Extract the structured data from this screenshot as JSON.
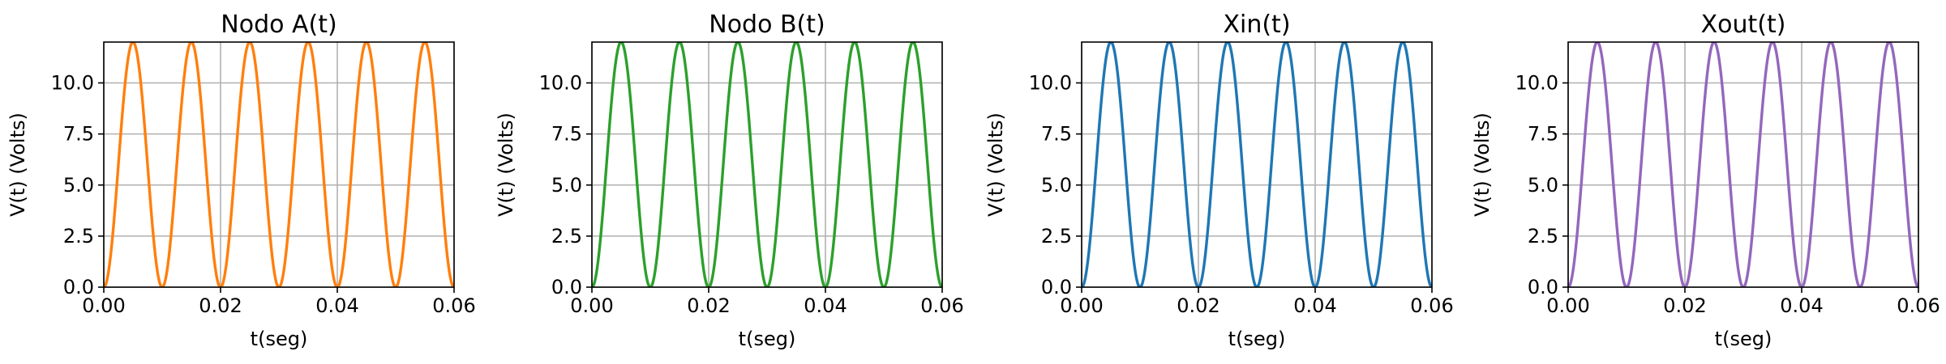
{
  "chart_data": [
    {
      "type": "line",
      "title": "Nodo A(t)",
      "xlabel": "t(seg)",
      "ylabel": "V(t) (Volts)",
      "xlim": [
        0.0,
        0.06
      ],
      "ylim": [
        0.0,
        12.0
      ],
      "xticks": [
        "0.00",
        "0.02",
        "0.04",
        "0.06"
      ],
      "yticks": [
        "0.0",
        "2.5",
        "5.0",
        "7.5",
        "10.0"
      ],
      "grid": true,
      "series": [
        {
          "color": "#ff7f0e",
          "x": [
            0.0,
            0.00125,
            0.0025,
            0.00375,
            0.005,
            0.00625,
            0.0075,
            0.00875,
            0.01,
            0.01125,
            0.0125,
            0.01375,
            0.015,
            0.01625,
            0.0175,
            0.01875,
            0.02,
            0.02125,
            0.0225,
            0.02375,
            0.025,
            0.02625,
            0.0275,
            0.02875,
            0.03,
            0.03125,
            0.0325,
            0.03375,
            0.035,
            0.03625,
            0.0375,
            0.03875,
            0.04,
            0.04125,
            0.0425,
            0.04375,
            0.045,
            0.04625,
            0.0475,
            0.04875,
            0.05,
            0.05125,
            0.0525,
            0.05375,
            0.055,
            0.05625,
            0.0575,
            0.05875,
            0.06
          ],
          "y": [
            0.0,
            1.76,
            6.0,
            10.24,
            12.0,
            10.24,
            6.0,
            1.76,
            0.0,
            1.76,
            6.0,
            10.24,
            12.0,
            10.24,
            6.0,
            1.76,
            0.0,
            1.76,
            6.0,
            10.24,
            12.0,
            10.24,
            6.0,
            1.76,
            0.0,
            1.76,
            6.0,
            10.24,
            12.0,
            10.24,
            6.0,
            1.76,
            0.0,
            1.76,
            6.0,
            10.24,
            12.0,
            10.24,
            6.0,
            1.76,
            0.0,
            1.76,
            6.0,
            10.24,
            12.0,
            10.24,
            6.0,
            1.76,
            0.0
          ]
        }
      ]
    },
    {
      "type": "line",
      "title": "Nodo B(t)",
      "xlabel": "t(seg)",
      "ylabel": "V(t) (Volts)",
      "xlim": [
        0.0,
        0.06
      ],
      "ylim": [
        0.0,
        12.0
      ],
      "xticks": [
        "0.00",
        "0.02",
        "0.04",
        "0.06"
      ],
      "yticks": [
        "0.0",
        "2.5",
        "5.0",
        "7.5",
        "10.0"
      ],
      "grid": true,
      "series": [
        {
          "color": "#2ca02c",
          "x": [
            0.0,
            0.00125,
            0.0025,
            0.00375,
            0.005,
            0.00625,
            0.0075,
            0.00875,
            0.01,
            0.01125,
            0.0125,
            0.01375,
            0.015,
            0.01625,
            0.0175,
            0.01875,
            0.02,
            0.02125,
            0.0225,
            0.02375,
            0.025,
            0.02625,
            0.0275,
            0.02875,
            0.03,
            0.03125,
            0.0325,
            0.03375,
            0.035,
            0.03625,
            0.0375,
            0.03875,
            0.04,
            0.04125,
            0.0425,
            0.04375,
            0.045,
            0.04625,
            0.0475,
            0.04875,
            0.05,
            0.05125,
            0.0525,
            0.05375,
            0.055,
            0.05625,
            0.0575,
            0.05875,
            0.06
          ],
          "y": [
            0.0,
            1.76,
            6.0,
            10.24,
            12.0,
            10.24,
            6.0,
            1.76,
            0.0,
            1.76,
            6.0,
            10.24,
            12.0,
            10.24,
            6.0,
            1.76,
            0.0,
            1.76,
            6.0,
            10.24,
            12.0,
            10.24,
            6.0,
            1.76,
            0.0,
            1.76,
            6.0,
            10.24,
            12.0,
            10.24,
            6.0,
            1.76,
            0.0,
            1.76,
            6.0,
            10.24,
            12.0,
            10.24,
            6.0,
            1.76,
            0.0,
            1.76,
            6.0,
            10.24,
            12.0,
            10.24,
            6.0,
            1.76,
            0.0
          ]
        }
      ]
    },
    {
      "type": "line",
      "title": "Xin(t)",
      "xlabel": "t(seg)",
      "ylabel": "V(t) (Volts)",
      "xlim": [
        0.0,
        0.06
      ],
      "ylim": [
        0.0,
        12.0
      ],
      "xticks": [
        "0.00",
        "0.02",
        "0.04",
        "0.06"
      ],
      "yticks": [
        "0.0",
        "2.5",
        "5.0",
        "7.5",
        "10.0"
      ],
      "grid": true,
      "series": [
        {
          "color": "#1f77b4",
          "x": [
            0.0,
            0.00125,
            0.0025,
            0.00375,
            0.005,
            0.00625,
            0.0075,
            0.00875,
            0.01,
            0.01125,
            0.0125,
            0.01375,
            0.015,
            0.01625,
            0.0175,
            0.01875,
            0.02,
            0.02125,
            0.0225,
            0.02375,
            0.025,
            0.02625,
            0.0275,
            0.02875,
            0.03,
            0.03125,
            0.0325,
            0.03375,
            0.035,
            0.03625,
            0.0375,
            0.03875,
            0.04,
            0.04125,
            0.0425,
            0.04375,
            0.045,
            0.04625,
            0.0475,
            0.04875,
            0.05,
            0.05125,
            0.0525,
            0.05375,
            0.055,
            0.05625,
            0.0575,
            0.05875,
            0.06
          ],
          "y": [
            0.0,
            1.76,
            6.0,
            10.24,
            12.0,
            10.24,
            6.0,
            1.76,
            0.0,
            1.76,
            6.0,
            10.24,
            12.0,
            10.24,
            6.0,
            1.76,
            0.0,
            1.76,
            6.0,
            10.24,
            12.0,
            10.24,
            6.0,
            1.76,
            0.0,
            1.76,
            6.0,
            10.24,
            12.0,
            10.24,
            6.0,
            1.76,
            0.0,
            1.76,
            6.0,
            10.24,
            12.0,
            10.24,
            6.0,
            1.76,
            0.0,
            1.76,
            6.0,
            10.24,
            12.0,
            10.24,
            6.0,
            1.76,
            0.0
          ]
        }
      ]
    },
    {
      "type": "line",
      "title": "Xout(t)",
      "xlabel": "t(seg)",
      "ylabel": "V(t) (Volts)",
      "xlim": [
        0.0,
        0.06
      ],
      "ylim": [
        0.0,
        12.0
      ],
      "xticks": [
        "0.00",
        "0.02",
        "0.04",
        "0.06"
      ],
      "yticks": [
        "0.0",
        "2.5",
        "5.0",
        "7.5",
        "10.0"
      ],
      "grid": true,
      "series": [
        {
          "color": "#9467bd",
          "x": [
            0.0,
            0.00125,
            0.0025,
            0.00375,
            0.005,
            0.00625,
            0.0075,
            0.00875,
            0.01,
            0.01125,
            0.0125,
            0.01375,
            0.015,
            0.01625,
            0.0175,
            0.01875,
            0.02,
            0.02125,
            0.0225,
            0.02375,
            0.025,
            0.02625,
            0.0275,
            0.02875,
            0.03,
            0.03125,
            0.0325,
            0.03375,
            0.035,
            0.03625,
            0.0375,
            0.03875,
            0.04,
            0.04125,
            0.0425,
            0.04375,
            0.045,
            0.04625,
            0.0475,
            0.04875,
            0.05,
            0.05125,
            0.0525,
            0.05375,
            0.055,
            0.05625,
            0.0575,
            0.05875,
            0.06
          ],
          "y": [
            0.0,
            1.76,
            6.0,
            10.24,
            12.0,
            10.24,
            6.0,
            1.76,
            0.0,
            1.76,
            6.0,
            10.24,
            12.0,
            10.24,
            6.0,
            1.76,
            0.0,
            1.76,
            6.0,
            10.24,
            12.0,
            10.24,
            6.0,
            1.76,
            0.0,
            1.76,
            6.0,
            10.24,
            12.0,
            10.24,
            6.0,
            1.76,
            0.0,
            1.76,
            6.0,
            10.24,
            12.0,
            10.24,
            6.0,
            1.76,
            0.0,
            1.76,
            6.0,
            10.24,
            12.0,
            10.24,
            6.0,
            1.76,
            0.0
          ]
        }
      ]
    }
  ]
}
